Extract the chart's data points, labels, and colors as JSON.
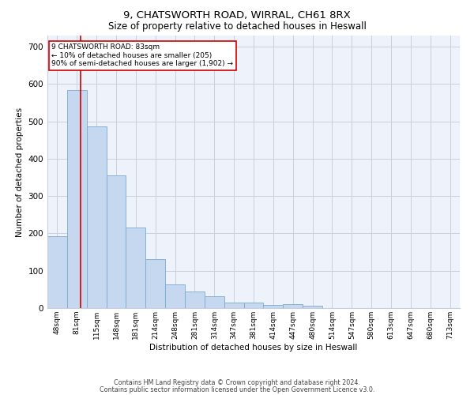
{
  "title_line1": "9, CHATSWORTH ROAD, WIRRAL, CH61 8RX",
  "title_line2": "Size of property relative to detached houses in Heswall",
  "xlabel": "Distribution of detached houses by size in Heswall",
  "ylabel": "Number of detached properties",
  "bar_labels": [
    "48sqm",
    "81sqm",
    "115sqm",
    "148sqm",
    "181sqm",
    "214sqm",
    "248sqm",
    "281sqm",
    "314sqm",
    "347sqm",
    "381sqm",
    "414sqm",
    "447sqm",
    "480sqm",
    "514sqm",
    "547sqm",
    "580sqm",
    "613sqm",
    "647sqm",
    "680sqm",
    "713sqm"
  ],
  "bar_values": [
    192,
    585,
    486,
    355,
    215,
    132,
    63,
    44,
    31,
    15,
    15,
    9,
    10,
    7,
    0,
    0,
    0,
    0,
    0,
    0,
    0
  ],
  "bar_color": "#c5d8f0",
  "bar_edge_color": "#7aaad0",
  "ylim": [
    0,
    730
  ],
  "yticks": [
    0,
    100,
    200,
    300,
    400,
    500,
    600,
    700
  ],
  "vline_x": 1.18,
  "vline_color": "#cc0000",
  "annotation_text": "9 CHATSWORTH ROAD: 83sqm\n← 10% of detached houses are smaller (205)\n90% of semi-detached houses are larger (1,902) →",
  "annotation_box_color": "#cc0000",
  "footer_line1": "Contains HM Land Registry data © Crown copyright and database right 2024.",
  "footer_line2": "Contains public sector information licensed under the Open Government Licence v3.0.",
  "background_color": "#eef2fb",
  "grid_color": "#c8cfe0"
}
